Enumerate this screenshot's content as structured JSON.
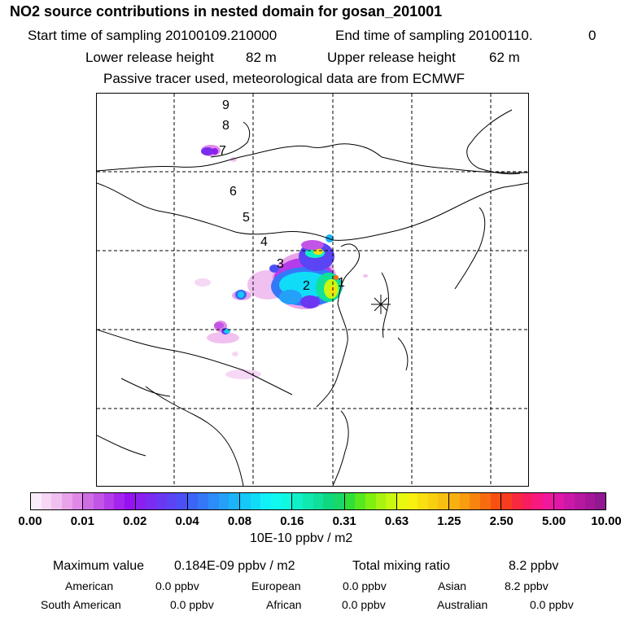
{
  "header": {
    "title": "NO2 source contributions in nested domain for gosan_201001",
    "start_label": "Start time of sampling 20100109.210000",
    "end_label": "End time of sampling 20100110.",
    "end_suffix": "0",
    "lower_label": "Lower release height",
    "lower_value": "82 m",
    "upper_label": "Upper release height",
    "upper_value": "62 m",
    "note": "Passive tracer used, meteorological data are from ECMWF"
  },
  "map": {
    "trajectory_labels": [
      "9",
      "8",
      "7",
      "6",
      "5",
      "4",
      "3",
      "2",
      "1"
    ],
    "receptor_marker": "star-marker"
  },
  "colorbar": {
    "ticks": [
      "0.00",
      "0.01",
      "0.02",
      "0.04",
      "0.08",
      "0.16",
      "0.31",
      "0.63",
      "1.25",
      "2.50",
      "5.00",
      "10.00"
    ],
    "segments": [
      [
        "#fbecfb",
        "#f6d7f6",
        "#f0c0f0",
        "#e9a3e9",
        "#e088e8"
      ],
      [
        "#cf6ee3",
        "#c254e6",
        "#b43cea",
        "#a524ee",
        "#9612f2"
      ],
      [
        "#8a1ff0",
        "#7a2cf0",
        "#6a38f2",
        "#5a44f4",
        "#4a50f6"
      ],
      [
        "#3c64f6",
        "#3478f8",
        "#2c8cf8",
        "#24a0f8",
        "#1cb4f8"
      ],
      [
        "#14c8f8",
        "#10dcf8",
        "#10f0f8",
        "#10f8f0",
        "#10f8e0"
      ],
      [
        "#10f0c8",
        "#10e8b0",
        "#10e098",
        "#10d880",
        "#18d868"
      ],
      [
        "#30e038",
        "#58e820",
        "#80f010",
        "#a8f410",
        "#c8f810"
      ],
      [
        "#e8f810",
        "#f8f010",
        "#f8e010",
        "#f8d010",
        "#f8c010"
      ],
      [
        "#f8b010",
        "#f89c10",
        "#f88410",
        "#f86c10",
        "#f85010"
      ],
      [
        "#f83c20",
        "#f82840",
        "#f81c60",
        "#f81880",
        "#f0189c"
      ],
      [
        "#e018a8",
        "#cc18a8",
        "#b818a0",
        "#a41898",
        "#901890"
      ]
    ],
    "unit": "10E-10 ppbv / m2"
  },
  "summary": {
    "max_label": "Maximum value",
    "max_value": "0.184E-09 ppbv / m2",
    "total_label": "Total mixing ratio",
    "total_value": "8.2 ppbv",
    "regions": [
      {
        "name": "American",
        "value": "0.0 ppbv"
      },
      {
        "name": "European",
        "value": "0.0 ppbv"
      },
      {
        "name": "Asian",
        "value": "8.2 ppbv"
      },
      {
        "name": "South American",
        "value": "0.0 ppbv"
      },
      {
        "name": "African",
        "value": "0.0 ppbv"
      },
      {
        "name": "Australian",
        "value": "0.0 ppbv"
      }
    ]
  }
}
